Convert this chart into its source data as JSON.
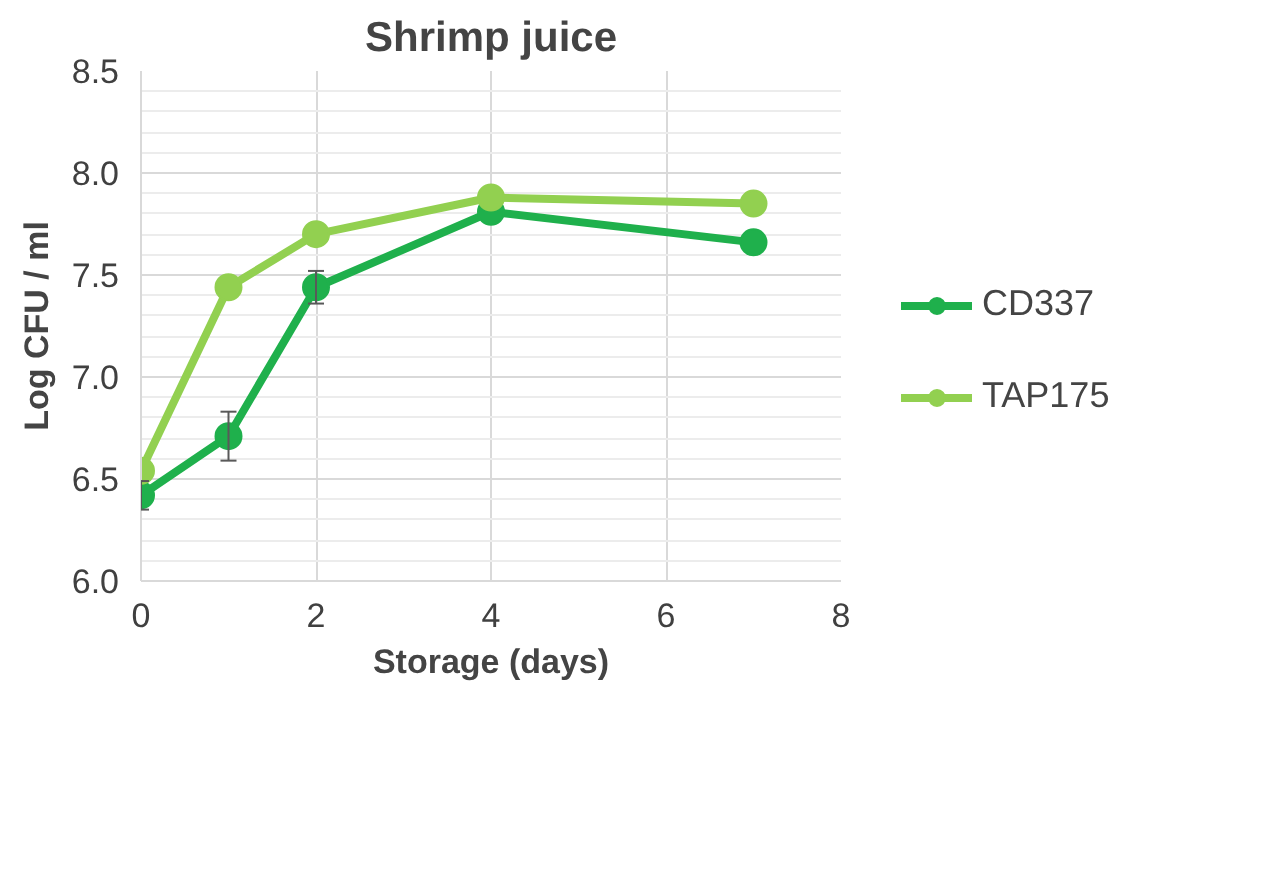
{
  "chart_data": {
    "type": "line",
    "title": "Shrimp juice",
    "xlabel": "Storage (days)",
    "ylabel": "Log CFU / ml",
    "x": [
      0,
      1,
      2,
      4,
      7
    ],
    "series": [
      {
        "name": "CD337",
        "color": "#1fb04c",
        "values": [
          6.42,
          6.71,
          7.44,
          7.81,
          7.66
        ],
        "errors": [
          0.07,
          0.12,
          0.08,
          null,
          null
        ]
      },
      {
        "name": "TAP175",
        "color": "#92d050",
        "values": [
          6.54,
          7.44,
          7.7,
          7.88,
          7.85
        ]
      }
    ],
    "xlim": [
      0,
      8
    ],
    "xticks": [
      0,
      2,
      4,
      6,
      8
    ],
    "ylim": [
      6.0,
      8.5
    ],
    "yticks": [
      {
        "value": 6.0,
        "label": "6.0"
      },
      {
        "value": 6.5,
        "label": "6.5"
      },
      {
        "value": 7.0,
        "label": "7.0"
      },
      {
        "value": 7.5,
        "label": "7.5"
      },
      {
        "value": 8.0,
        "label": "8.0"
      },
      {
        "value": 8.5,
        "label": "8.5"
      }
    ],
    "grid": true,
    "legend": "right",
    "marker": "circle",
    "line_style": "solid"
  }
}
